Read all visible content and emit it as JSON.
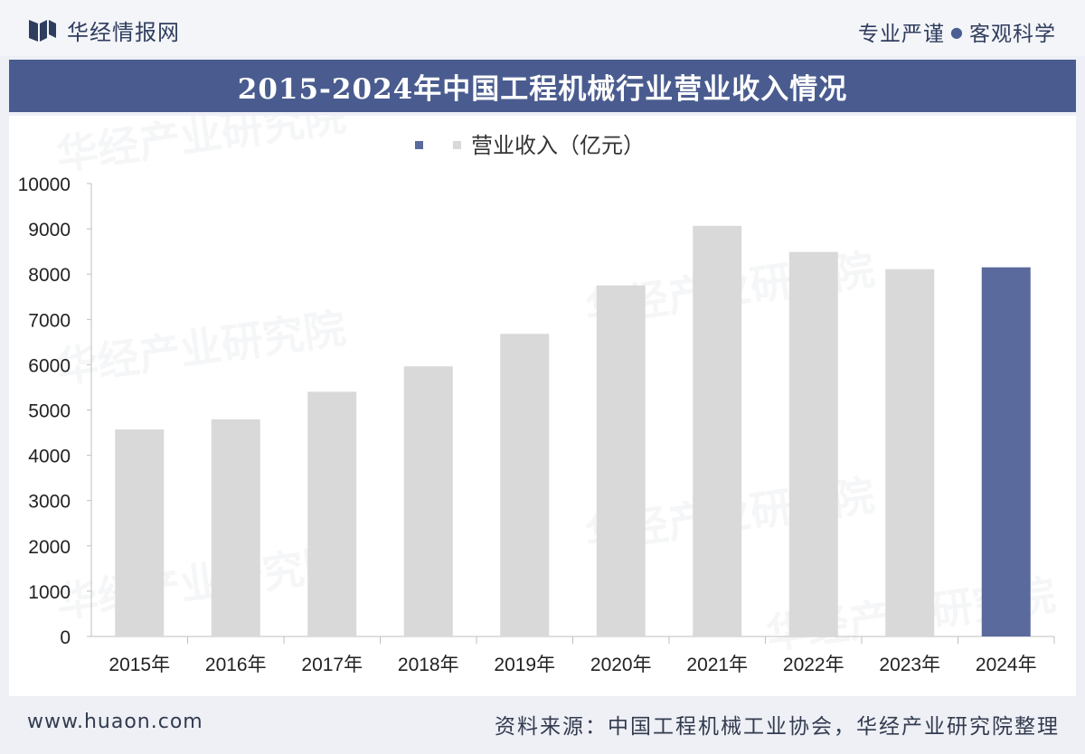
{
  "header": {
    "brand_name": "华经情报网",
    "slogan_left": "专业严谨",
    "slogan_dot": "●",
    "slogan_right": "客观科学",
    "logo_icon": "huajing-logo-icon"
  },
  "title": "2015-2024年中国工程机械行业营业收入情况",
  "watermark": "华经产业研究院",
  "footer": {
    "website": "www.huaon.com",
    "source": "资料来源：中国工程机械工业协会，华经产业研究院整理"
  },
  "colors": {
    "bar_default": "#d9d9d9",
    "bar_highlight": "#5a6a9c",
    "title_bar": "#4a5c8f"
  },
  "chart_data": {
    "type": "bar",
    "categories": [
      "2015年",
      "2016年",
      "2017年",
      "2018年",
      "2019年",
      "2020年",
      "2021年",
      "2022年",
      "2023年",
      "2024年"
    ],
    "series": [
      {
        "name": "营业收入（亿元）",
        "values": [
          4570,
          4795,
          5403,
          5964,
          6681,
          7751,
          9065,
          8490,
          8110,
          8150
        ]
      }
    ],
    "highlight_index": 9,
    "legend": [
      "营业收入（亿元）"
    ],
    "legend_position": "top",
    "ylim": [
      0,
      10000
    ],
    "yticks": [
      0,
      1000,
      2000,
      3000,
      4000,
      5000,
      6000,
      7000,
      8000,
      9000,
      10000
    ],
    "grid": false
  }
}
